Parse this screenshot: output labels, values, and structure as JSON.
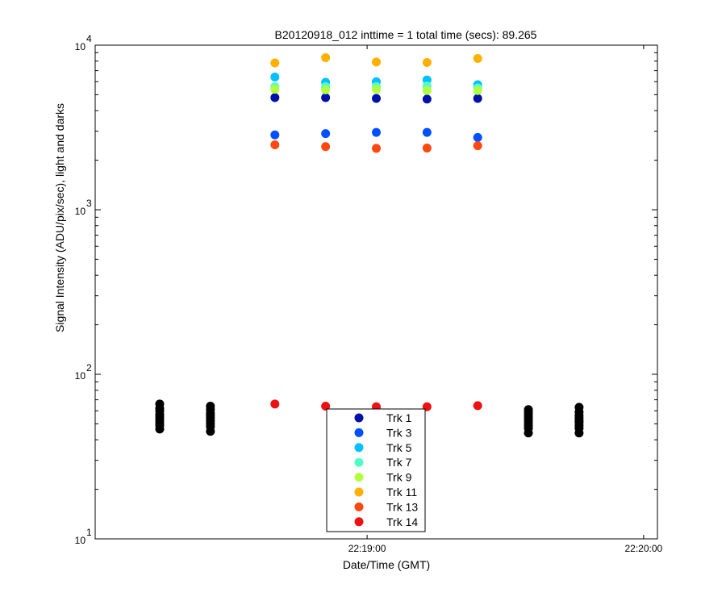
{
  "chart_data": {
    "type": "scatter",
    "title": "B20120918_012 inttime = 1 total time (secs): 89.265",
    "xlabel": "Date/Time (GMT)",
    "ylabel": "Signal Intensity (ADU/pix/sec), light and darks",
    "yscale": "log",
    "ylim": [
      10,
      10000
    ],
    "xlim": [
      "22:18:01",
      "22:20:03"
    ],
    "x_ticks": [
      "22:19:00",
      "22:20:00"
    ],
    "y_ticks": [
      {
        "base": "10",
        "exp": "1",
        "value": 10
      },
      {
        "base": "10",
        "exp": "2",
        "value": 100
      },
      {
        "base": "10",
        "exp": "3",
        "value": 1000
      },
      {
        "base": "10",
        "exp": "4",
        "value": 10000
      }
    ],
    "grid": false,
    "legend_position": "bottom-center",
    "light_x": [
      "22:18:40",
      "22:18:51",
      "22:19:02",
      "22:19:13",
      "22:19:24"
    ],
    "series": [
      {
        "name": "Trk 1",
        "color": "#0011aa",
        "values": [
          4800,
          4800,
          4750,
          4700,
          4750
        ]
      },
      {
        "name": "Trk 3",
        "color": "#0050ff",
        "values": [
          2850,
          2900,
          2950,
          2950,
          2750
        ]
      },
      {
        "name": "Trk 5",
        "color": "#00c0ff",
        "values": [
          6400,
          5950,
          6000,
          6150,
          5750
        ]
      },
      {
        "name": "Trk 7",
        "color": "#50ffc8",
        "values": [
          5600,
          5600,
          5600,
          5650,
          5500
        ]
      },
      {
        "name": "Trk 9",
        "color": "#b0ff40",
        "values": [
          5400,
          5350,
          5400,
          5300,
          5300
        ]
      },
      {
        "name": "Trk 11",
        "color": "#ffb000",
        "values": [
          7800,
          8400,
          7900,
          7850,
          8300
        ]
      },
      {
        "name": "Trk 13",
        "color": "#ff4810",
        "values": [
          2480,
          2420,
          2360,
          2370,
          2450
        ]
      },
      {
        "name": "Trk 14",
        "color": "#ee1111",
        "values": [
          66,
          64,
          63.5,
          63.5,
          64.5
        ]
      }
    ],
    "dark_color": "#000000",
    "dark_groups": [
      {
        "x": "22:18:15",
        "values": [
          46.5,
          49,
          51,
          53,
          55,
          57,
          60,
          62,
          66
        ]
      },
      {
        "x": "22:18:26",
        "values": [
          45,
          48,
          50,
          52,
          54,
          56,
          58,
          61,
          64
        ]
      },
      {
        "x": "22:19:35",
        "values": [
          44,
          47,
          49,
          51,
          53,
          55,
          57,
          59,
          61
        ]
      },
      {
        "x": "22:19:46",
        "values": [
          44,
          47,
          49,
          51,
          52,
          54,
          56,
          59,
          63
        ]
      }
    ]
  }
}
